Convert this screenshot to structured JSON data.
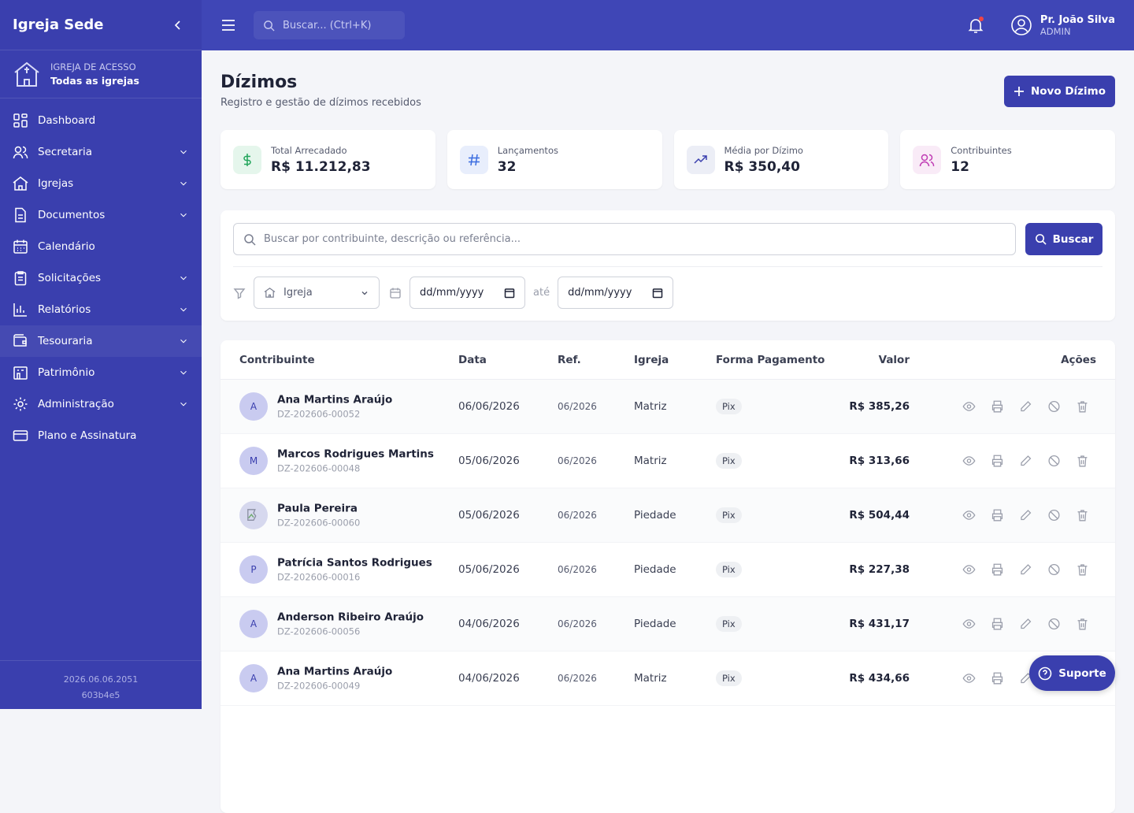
{
  "sidebar": {
    "title": "Igreja Sede",
    "access_label": "IGREJA DE ACESSO",
    "access_value": "Todas as igrejas",
    "menu": [
      {
        "label": "Dashboard",
        "submenu": false
      },
      {
        "label": "Secretaria",
        "submenu": true
      },
      {
        "label": "Igrejas",
        "submenu": true
      },
      {
        "label": "Documentos",
        "submenu": true
      },
      {
        "label": "Calendário",
        "submenu": false
      },
      {
        "label": "Solicitações",
        "submenu": true
      },
      {
        "label": "Relatórios",
        "submenu": true
      },
      {
        "label": "Tesouraria",
        "submenu": true,
        "active": true
      },
      {
        "label": "Patrimônio",
        "submenu": true
      },
      {
        "label": "Administração",
        "submenu": true
      },
      {
        "label": "Plano e Assinatura",
        "submenu": false
      }
    ],
    "version": "2026.06.06.2051",
    "build": "603b4e5"
  },
  "topbar": {
    "search_placeholder": "Buscar... (Ctrl+K)",
    "user_name": "Pr. João Silva",
    "user_role": "ADMIN"
  },
  "header": {
    "title": "Dízimos",
    "subtitle": "Registro e gestão de dízimos recebidos",
    "new_button": "Novo Dízimo"
  },
  "stats": [
    {
      "label": "Total Arrecadado",
      "value": "R$ 11.212,83"
    },
    {
      "label": "Lançamentos",
      "value": "32"
    },
    {
      "label": "Média por Dízimo",
      "value": "R$ 350,40"
    },
    {
      "label": "Contribuintes",
      "value": "12"
    }
  ],
  "filters": {
    "search_placeholder": "Buscar por contribuinte, descrição ou referência...",
    "search_button": "Buscar",
    "church_select": "Igreja",
    "date_from": "dd/mm/yyyy",
    "between": "até",
    "date_to": "dd/mm/yyyy"
  },
  "table": {
    "columns": [
      "Contribuinte",
      "Data",
      "Ref.",
      "Igreja",
      "Forma Pagamento",
      "Valor",
      "Ações"
    ],
    "rows": [
      {
        "initial": "A",
        "name": "Ana Martins Araújo",
        "code": "DZ-202606-00052",
        "date": "06/06/2026",
        "ref": "06/2026",
        "church": "Matriz",
        "payment": "Pix",
        "value": "R$ 385,26"
      },
      {
        "initial": "M",
        "name": "Marcos Rodrigues Martins",
        "code": "DZ-202606-00048",
        "date": "05/06/2026",
        "ref": "06/2026",
        "church": "Matriz",
        "payment": "Pix",
        "value": "R$ 313,66"
      },
      {
        "name": "Paula Pereira",
        "code": "DZ-202606-00060",
        "date": "05/06/2026",
        "ref": "06/2026",
        "church": "Piedade",
        "payment": "Pix",
        "value": "R$ 504,44"
      },
      {
        "initial": "P",
        "name": "Patrícia Santos Rodrigues",
        "code": "DZ-202606-00016",
        "date": "05/06/2026",
        "ref": "06/2026",
        "church": "Piedade",
        "payment": "Pix",
        "value": "R$ 227,38"
      },
      {
        "initial": "A",
        "name": "Anderson Ribeiro Araújo",
        "code": "DZ-202606-00056",
        "date": "04/06/2026",
        "ref": "06/2026",
        "church": "Piedade",
        "payment": "Pix",
        "value": "R$ 431,17"
      },
      {
        "initial": "A",
        "name": "Ana Martins Araújo",
        "code": "DZ-202606-00049",
        "date": "04/06/2026",
        "ref": "06/2026",
        "church": "Matriz",
        "payment": "Pix",
        "value": "R$ 434,66"
      }
    ]
  },
  "support_button": "Suporte"
}
